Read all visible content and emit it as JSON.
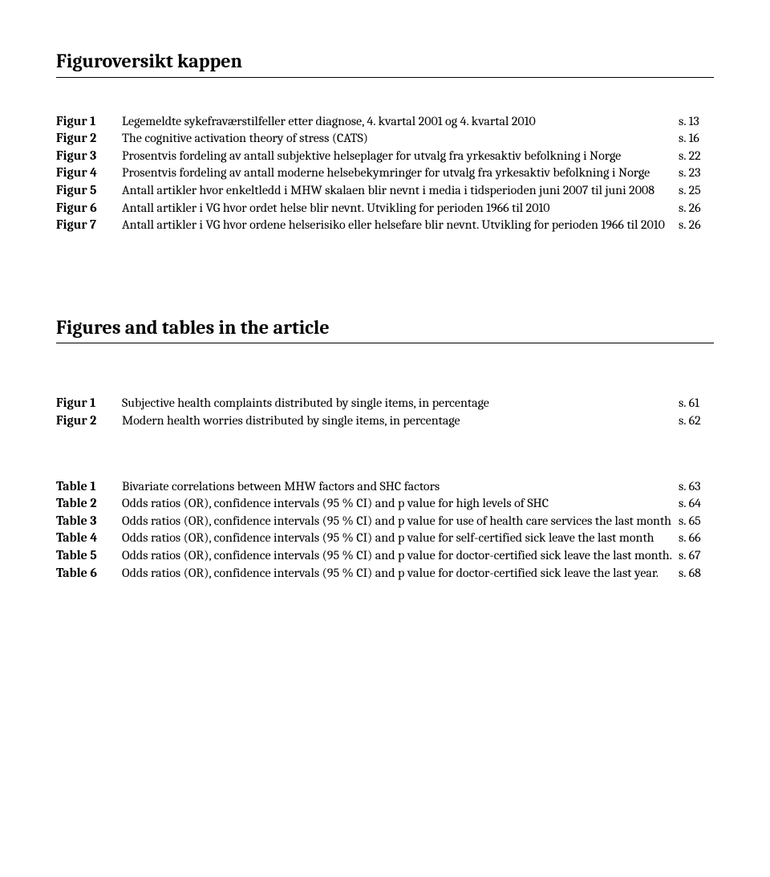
{
  "section1": {
    "title": "Figuroversikt kappen",
    "rows": [
      {
        "label": "Figur 1",
        "desc": "Legemeldte sykefraværstilfeller etter diagnose, 4. kvartal 2001 og 4. kvartal 2010",
        "page": "s. 13"
      },
      {
        "label": "Figur 2",
        "desc": "The cognitive activation theory of stress (CATS)",
        "page": "s. 16"
      },
      {
        "label": "Figur 3",
        "desc": "Prosentvis fordeling av antall subjektive helseplager for utvalg fra yrkesaktiv befolkning i Norge",
        "page": "s. 22"
      },
      {
        "label": "Figur 4",
        "desc": "Prosentvis fordeling av antall moderne helsebekymringer for utvalg fra yrkesaktiv befolkning i Norge",
        "page": "s. 23"
      },
      {
        "label": "Figur 5",
        "desc": "Antall artikler hvor enkeltledd i MHW skalaen blir nevnt i media i tidsperioden juni 2007 til juni 2008",
        "page": "s. 25"
      },
      {
        "label": "Figur 6",
        "desc": "Antall artikler i VG hvor ordet helse blir nevnt. Utvikling for perioden 1966 til 2010",
        "page": "s. 26"
      },
      {
        "label": "Figur 7",
        "desc": "Antall artikler i VG hvor ordene helserisiko eller helsefare blir nevnt. Utvikling for perioden 1966 til 2010",
        "page": "s. 26"
      }
    ]
  },
  "section2": {
    "title": "Figures and tables in the article",
    "figures": [
      {
        "label": "Figur 1",
        "desc": "Subjective health complaints distributed by single items, in percentage",
        "page": "s. 61"
      },
      {
        "label": "Figur 2",
        "desc": "Modern health worries distributed by single items, in percentage",
        "page": "s. 62"
      }
    ],
    "tables": [
      {
        "label": "Table 1",
        "desc": "Bivariate correlations between MHW factors and SHC factors",
        "page": "s. 63"
      },
      {
        "label": "Table 2",
        "desc": "Odds ratios (OR), confidence intervals (95 % CI) and p value for high levels of SHC",
        "page": "s. 64"
      },
      {
        "label": "Table 3",
        "desc": "Odds ratios (OR), confidence intervals (95 % CI) and p value for use of health care services the last month",
        "page": "s. 65"
      },
      {
        "label": "Table 4",
        "desc": "Odds ratios (OR), confidence intervals (95 % CI) and p value for self-certified sick leave the last month",
        "page": "s. 66"
      },
      {
        "label": "Table 5",
        "desc": "Odds ratios (OR), confidence intervals (95 % CI) and p value for doctor-certified sick leave the last month.",
        "page": "s. 67"
      },
      {
        "label": "Table 6",
        "desc": "Odds ratios (OR), confidence intervals (95 % CI) and p value for doctor-certified sick leave the last year.",
        "page": "s. 68"
      }
    ]
  }
}
